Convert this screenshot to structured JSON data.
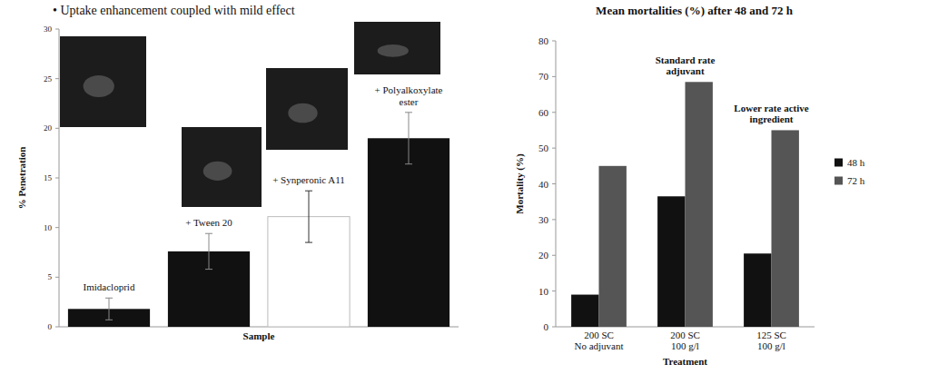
{
  "chart_data": [
    {
      "type": "bar",
      "title": "• Uptake enhancement coupled with mild effect",
      "x_label": "Sample",
      "y_label": "% Penetration",
      "categories": [
        "Imidacloprid",
        "+ Tween 20",
        "+ Synperonic A11",
        "+ Polyalkoxylate ester"
      ],
      "values": [
        1.8,
        7.6,
        11.1,
        19.0
      ],
      "errors": [
        1.1,
        1.8,
        2.6,
        2.6
      ],
      "colors": [
        "#111111",
        "#111111",
        "#ffffff",
        "#111111"
      ],
      "ylim": [
        0,
        30
      ],
      "yticks": [
        0,
        5,
        10,
        15,
        20,
        25,
        30
      ],
      "tick_labels": "y"
    },
    {
      "type": "bar",
      "title": "Mean mortalities (%) after 48 and 72 h",
      "x_label": "Treatment",
      "y_label": "Mortality (%)",
      "categories": [
        "200 SC\nNo adjuvant",
        "200 SC\n100 g/l",
        "125 SC\n100 g/l"
      ],
      "annotations": [
        null,
        "Standard rate adjuvant",
        "Lower rate active ingredient"
      ],
      "series": [
        {
          "name": "48 h",
          "color": "#111111",
          "values": [
            9,
            36.5,
            20.5
          ]
        },
        {
          "name": "72 h",
          "color": "#555555",
          "values": [
            45,
            68.5,
            55
          ]
        }
      ],
      "ylim": [
        0,
        80
      ],
      "yticks": [
        0,
        10,
        20,
        30,
        40,
        50,
        60,
        70,
        80
      ],
      "legend": "right"
    }
  ]
}
